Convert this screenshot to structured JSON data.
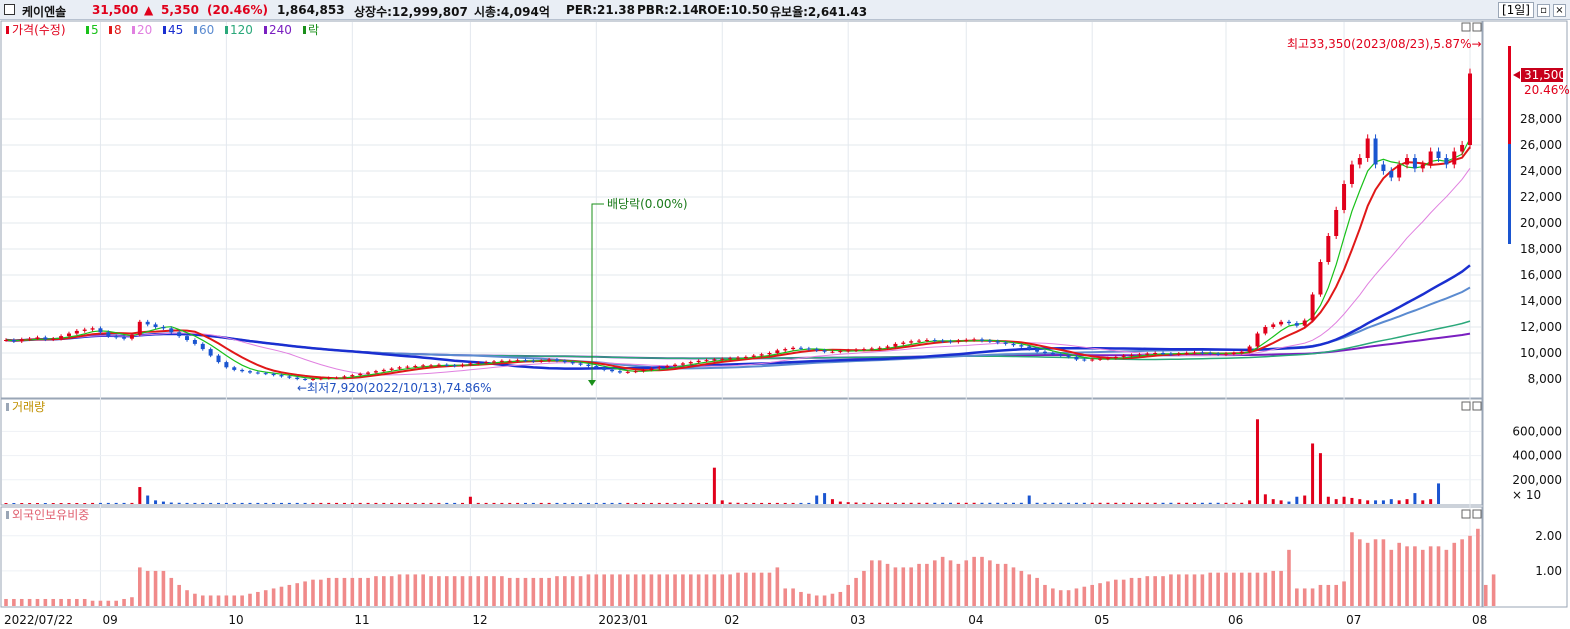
{
  "header": {
    "stock_name": "케이엔솔",
    "price": "31,500",
    "change_arrow": "▲",
    "change": "5,350",
    "change_pct": "(20.46%)",
    "volume": "1,864,853",
    "listed_shares": "상장수:12,999,807",
    "market_cap": "시총:4,094억",
    "per": "PER:21.38",
    "pbr": "PBR:2.14",
    "roe": "ROE:10.50",
    "reserve_ratio": "유보율:2,641.43",
    "period_button": "[1일]"
  },
  "legend": {
    "price": "가격(수정)",
    "ma": [
      {
        "label": "5",
        "color": "#19c119"
      },
      {
        "label": "8",
        "color": "#e01818"
      },
      {
        "label": "20",
        "color": "#e080e0"
      },
      {
        "label": "45",
        "color": "#1a2fd0"
      },
      {
        "label": "60",
        "color": "#5b8bd0"
      },
      {
        "label": "120",
        "color": "#2aa87a"
      },
      {
        "label": "240",
        "color": "#7a1fc0"
      }
    ],
    "ex_dividend": "락"
  },
  "annotations": {
    "high": "최고33,350(2023/08/23),5.87%→",
    "low": "←최저7,920(2022/10/13),74.86%",
    "dividend": "배당락(0.00%)",
    "price_tag": "31,500",
    "pct_tag": "20.46%"
  },
  "volume_panel": {
    "title": "거래량",
    "unit": "× 10"
  },
  "foreign_panel": {
    "title": "외국인보유비중"
  },
  "chart_data": [
    {
      "type": "candlestick",
      "title": "가격(수정)",
      "y_ticks": [
        8000,
        10000,
        12000,
        14000,
        16000,
        18000,
        20000,
        22000,
        24000,
        26000,
        28000
      ],
      "ylim": [
        7000,
        35000
      ],
      "close": [
        11000,
        10900,
        11050,
        11100,
        11200,
        11050,
        11100,
        11300,
        11500,
        11700,
        11800,
        11900,
        11600,
        11300,
        11200,
        11100,
        11400,
        12400,
        12200,
        12000,
        11900,
        11600,
        11300,
        11000,
        10700,
        10300,
        9800,
        9300,
        8900,
        8700,
        8600,
        8500,
        8450,
        8400,
        8300,
        8200,
        8100,
        8000,
        7950,
        8000,
        8050,
        8100,
        8100,
        8200,
        8300,
        8400,
        8500,
        8600,
        8700,
        8800,
        8900,
        8950,
        9000,
        9050,
        9050,
        9100,
        9050,
        9000,
        9100,
        9200,
        9250,
        9300,
        9350,
        9400,
        9400,
        9450,
        9400,
        9350,
        9400,
        9500,
        9400,
        9300,
        9200,
        9100,
        9000,
        8900,
        8700,
        8600,
        8500,
        8550,
        8600,
        8700,
        8800,
        8900,
        9000,
        9100,
        9200,
        9300,
        9400,
        9450,
        9500,
        9550,
        9600,
        9650,
        9700,
        9800,
        9900,
        10000,
        10200,
        10300,
        10400,
        10350,
        10300,
        10200,
        10100,
        10100,
        10150,
        10200,
        10250,
        10300,
        10350,
        10400,
        10500,
        10700,
        10800,
        10900,
        10950,
        11000,
        10950,
        10900,
        10850,
        10950,
        11000,
        11050,
        10950,
        10900,
        10800,
        10700,
        10600,
        10500,
        10300,
        10100,
        10000,
        9900,
        9800,
        9700,
        9500,
        9450,
        9500,
        9550,
        9600,
        9700,
        9800,
        9850,
        9900,
        9950,
        10000,
        9950,
        9900,
        9950,
        10000,
        10050,
        10000,
        9950,
        9900,
        9950,
        10000,
        10100,
        10500,
        11500,
        12000,
        12200,
        12400,
        12300,
        12100,
        12500,
        14500,
        17000,
        19000,
        21000,
        23000,
        24500,
        25000,
        26500,
        24500,
        24000,
        23500,
        24500,
        25000,
        24200,
        24500,
        25500,
        25000,
        24500,
        25500,
        26000,
        31500
      ],
      "x_tick_labels": [
        "2022/07/22",
        "09",
        "10",
        "11",
        "12",
        "2023/01",
        "02",
        "03",
        "04",
        "05",
        "06",
        "07",
        "08"
      ],
      "moving_averages": [
        "5",
        "8",
        "20",
        "45",
        "60",
        "120",
        "240"
      ]
    },
    {
      "type": "bar",
      "title": "거래량",
      "y_ticks": [
        200000,
        400000,
        600000
      ],
      "values": [
        8000,
        8000,
        8000,
        8000,
        8000,
        8000,
        8000,
        8000,
        8000,
        8000,
        8000,
        9000,
        9000,
        9000,
        9000,
        9000,
        9000,
        140000,
        70000,
        30000,
        20000,
        12000,
        10000,
        9000,
        9000,
        9000,
        9000,
        9000,
        9000,
        9000,
        9000,
        9000,
        9000,
        9000,
        9000,
        9000,
        9000,
        9000,
        9000,
        9000,
        9000,
        9000,
        9000,
        9000,
        9000,
        9000,
        9000,
        9000,
        9000,
        9000,
        9000,
        9000,
        9000,
        9000,
        9000,
        9000,
        9000,
        9000,
        9000,
        60000,
        9000,
        9000,
        9000,
        9000,
        9000,
        9000,
        9000,
        9000,
        9000,
        9000,
        9000,
        9000,
        9000,
        9000,
        9000,
        9000,
        9000,
        9000,
        9000,
        9000,
        9000,
        9000,
        9000,
        9000,
        9000,
        9000,
        9000,
        9000,
        9000,
        9000,
        300000,
        30000,
        12000,
        10000,
        9000,
        9000,
        9000,
        9000,
        9000,
        9000,
        9000,
        9000,
        9000,
        70000,
        90000,
        40000,
        20000,
        15000,
        12000,
        10000,
        10000,
        10000,
        10000,
        10000,
        10000,
        10000,
        10000,
        10000,
        10000,
        10000,
        10000,
        10000,
        10000,
        10000,
        10000,
        10000,
        10000,
        10000,
        10000,
        10000,
        70000,
        10000,
        10000,
        10000,
        10000,
        10000,
        10000,
        10000,
        10000,
        10000,
        10000,
        10000,
        10000,
        10000,
        10000,
        10000,
        10000,
        10000,
        10000,
        10000,
        10000,
        10000,
        10000,
        10000,
        10000,
        10000,
        10000,
        10000,
        30000,
        700000,
        80000,
        40000,
        30000,
        20000,
        60000,
        70000,
        500000,
        420000,
        60000,
        40000,
        60000,
        50000,
        40000,
        30000,
        30000,
        30000,
        40000,
        30000,
        40000,
        90000,
        30000,
        40000,
        170000
      ]
    },
    {
      "type": "bar",
      "title": "외국인보유비중",
      "y_ticks": [
        1.0,
        2.0
      ],
      "values": [
        0.2,
        0.2,
        0.2,
        0.2,
        0.2,
        0.2,
        0.2,
        0.2,
        0.2,
        0.2,
        0.2,
        0.15,
        0.15,
        0.15,
        0.15,
        0.2,
        0.25,
        1.1,
        1.0,
        1.0,
        1.0,
        0.8,
        0.6,
        0.45,
        0.35,
        0.3,
        0.3,
        0.3,
        0.3,
        0.3,
        0.3,
        0.35,
        0.4,
        0.45,
        0.5,
        0.55,
        0.6,
        0.65,
        0.7,
        0.75,
        0.75,
        0.8,
        0.8,
        0.8,
        0.8,
        0.8,
        0.8,
        0.85,
        0.85,
        0.85,
        0.9,
        0.9,
        0.9,
        0.9,
        0.85,
        0.85,
        0.85,
        0.85,
        0.85,
        0.85,
        0.85,
        0.85,
        0.85,
        0.85,
        0.8,
        0.8,
        0.8,
        0.8,
        0.8,
        0.8,
        0.85,
        0.85,
        0.85,
        0.85,
        0.9,
        0.9,
        0.9,
        0.9,
        0.9,
        0.9,
        0.9,
        0.9,
        0.9,
        0.9,
        0.9,
        0.9,
        0.9,
        0.9,
        0.9,
        0.9,
        0.9,
        0.9,
        0.9,
        0.95,
        0.95,
        0.95,
        0.95,
        0.95,
        1.1,
        0.5,
        0.5,
        0.4,
        0.35,
        0.3,
        0.3,
        0.35,
        0.4,
        0.6,
        0.8,
        1.0,
        1.3,
        1.3,
        1.2,
        1.1,
        1.1,
        1.1,
        1.2,
        1.2,
        1.3,
        1.4,
        1.3,
        1.2,
        1.3,
        1.4,
        1.4,
        1.3,
        1.2,
        1.2,
        1.1,
        1.0,
        0.9,
        0.8,
        0.6,
        0.5,
        0.45,
        0.45,
        0.5,
        0.55,
        0.6,
        0.65,
        0.7,
        0.75,
        0.75,
        0.8,
        0.8,
        0.85,
        0.85,
        0.85,
        0.9,
        0.9,
        0.9,
        0.9,
        0.9,
        0.95,
        0.95,
        0.95,
        0.95,
        0.95,
        0.95,
        0.95,
        0.95,
        1.0,
        1.0,
        1.6,
        0.5,
        0.5,
        0.5,
        0.6,
        0.6,
        0.6,
        0.7,
        2.1,
        1.9,
        1.8,
        1.9,
        1.9,
        1.6,
        1.8,
        1.7,
        1.7,
        1.6,
        1.7,
        1.7,
        1.6,
        1.8,
        1.9,
        2.0,
        2.2,
        0.6,
        0.9
      ]
    }
  ]
}
